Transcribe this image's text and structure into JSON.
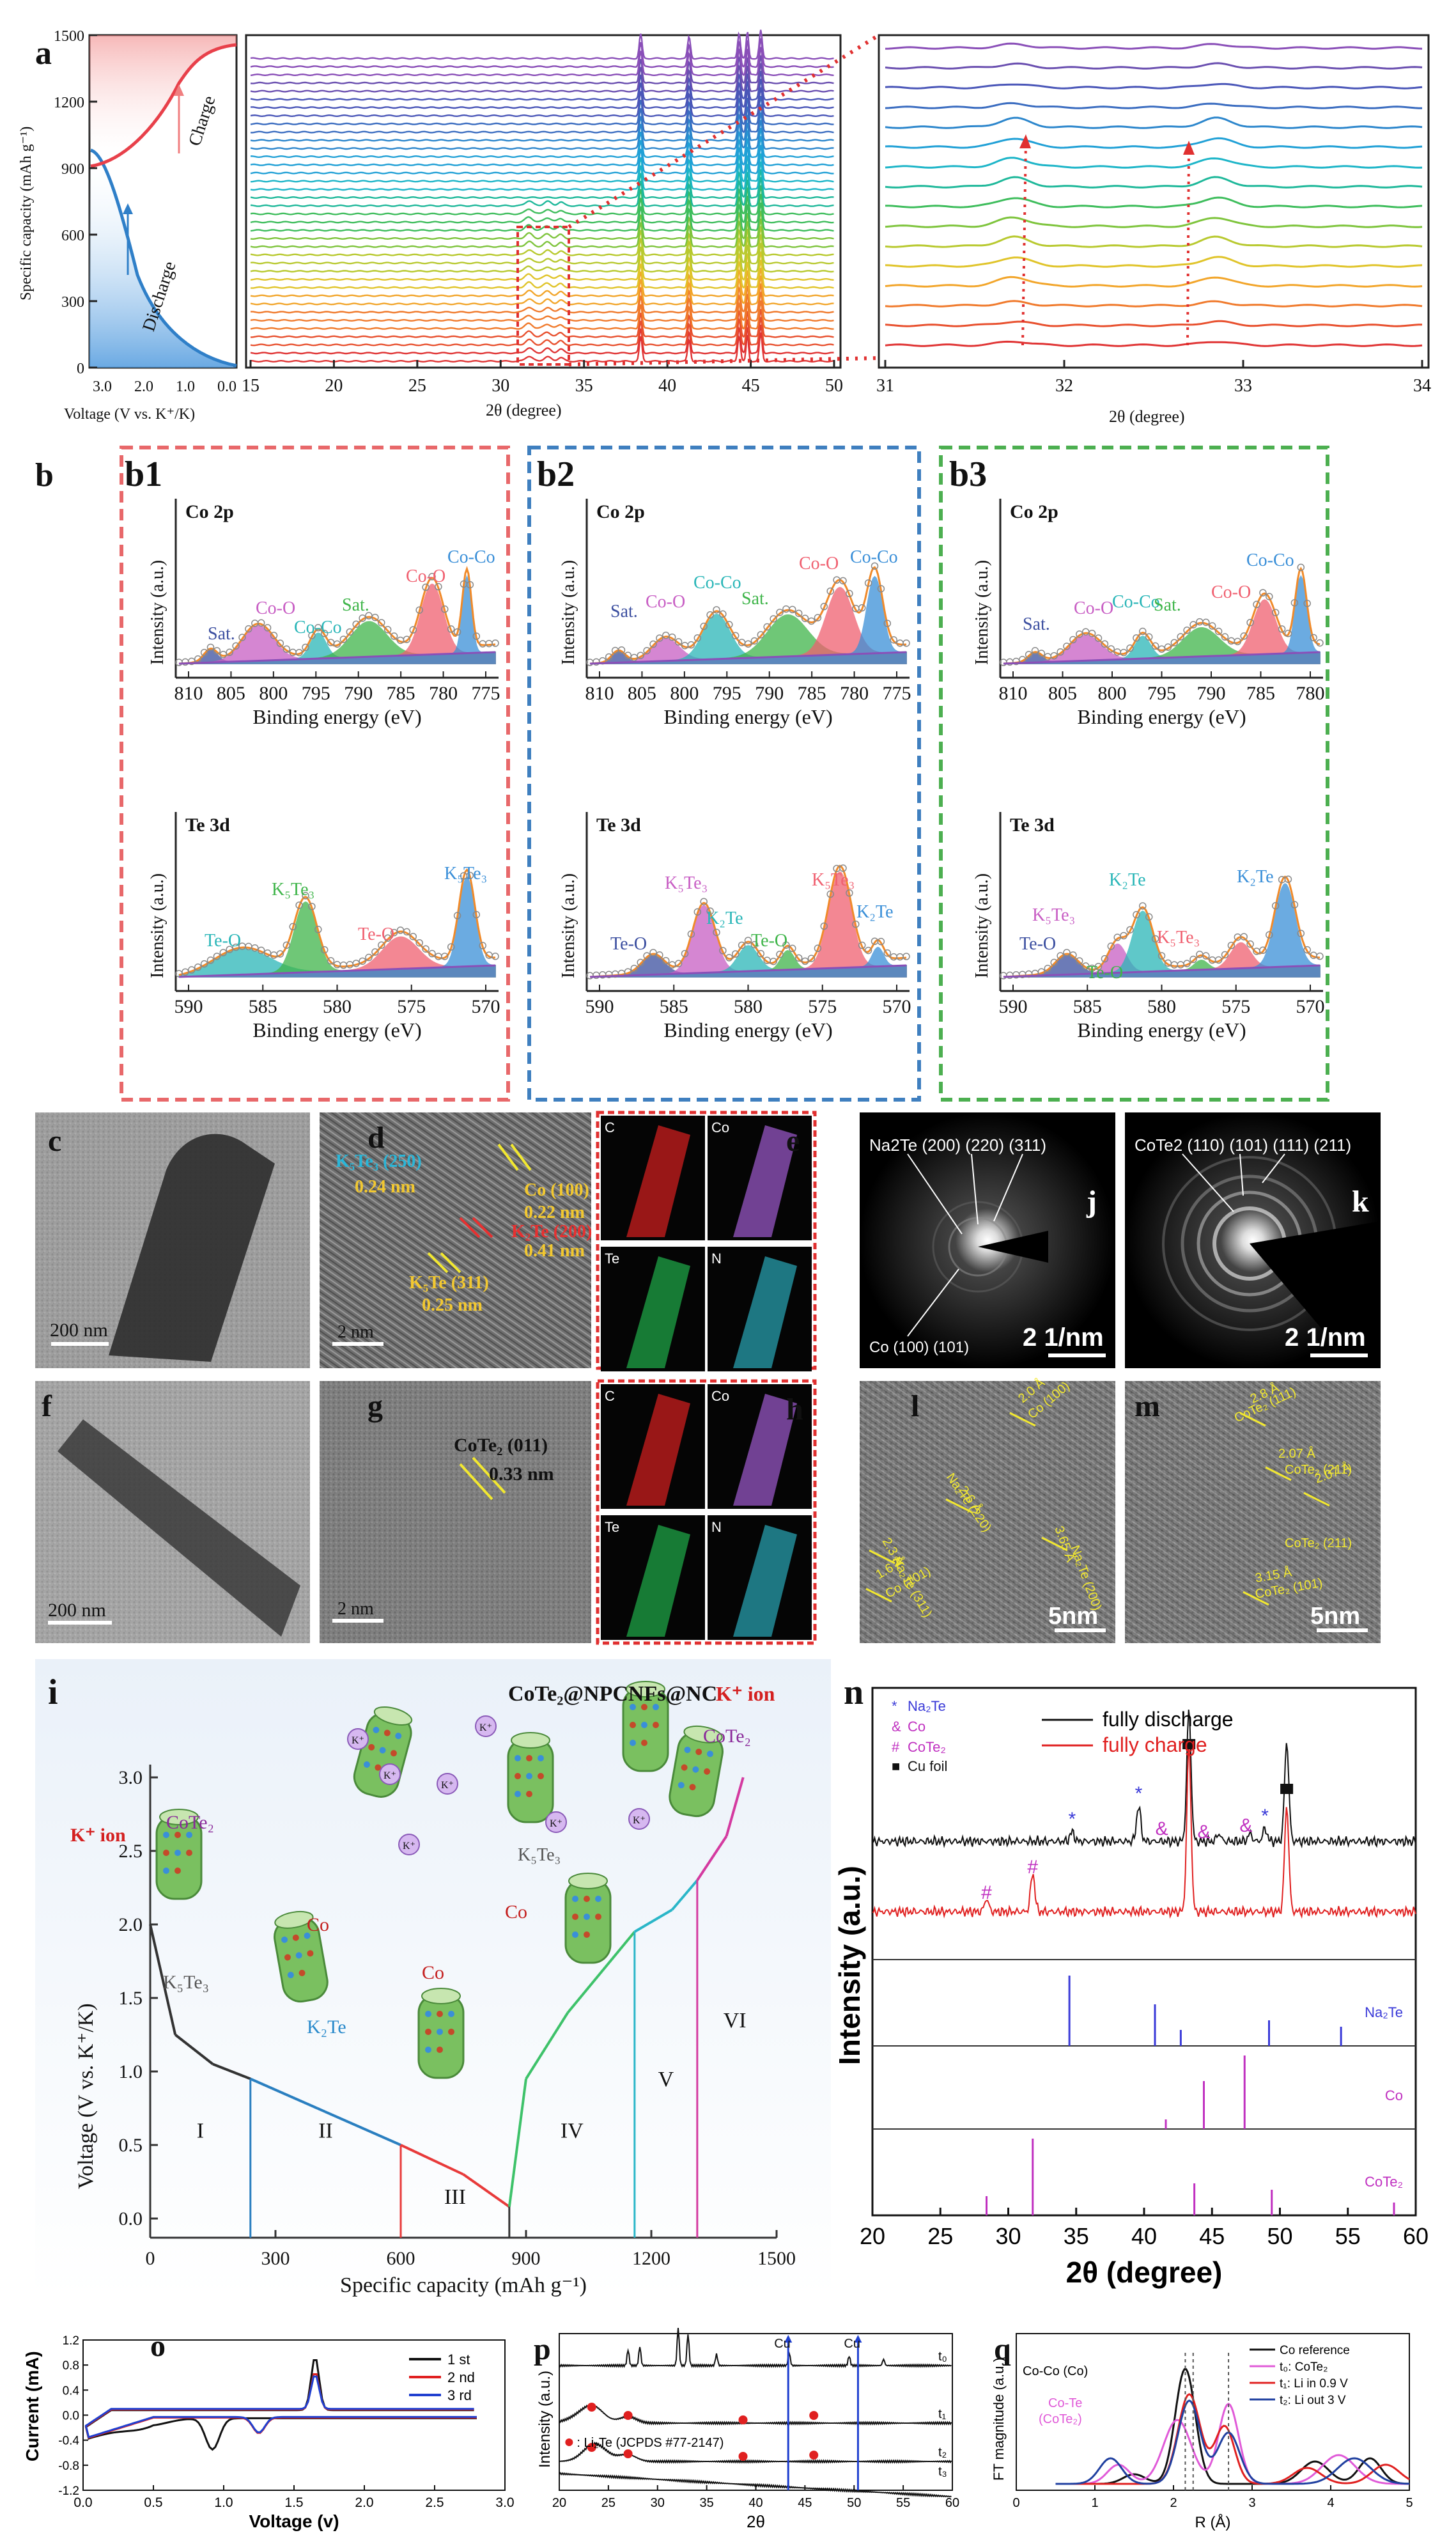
{
  "panel_labels": {
    "a": "a",
    "b": "b",
    "b1": "b1",
    "b2": "b2",
    "b3": "b3",
    "c": "c",
    "d": "d",
    "e": "e",
    "f": "f",
    "g": "g",
    "h": "h",
    "i": "i",
    "j": "j",
    "k": "k",
    "l": "l",
    "m": "m",
    "n": "n",
    "o": "o",
    "p": "p",
    "q": "q"
  },
  "colors": {
    "red_frame": "#e8686a",
    "blue_frame": "#3f7fbf",
    "green_frame": "#4caf50",
    "charge": "#e8404a",
    "discharge": "#2f7fc8"
  },
  "a": {
    "ylabel": "Specific capacity (mAh g⁻¹)",
    "yticks": [
      "0",
      "300",
      "600",
      "900",
      "1200",
      "1500"
    ],
    "xlabel_left": "Voltage (V vs. K⁺/K)",
    "vticks": [
      "3.0",
      "2.0",
      "1.0",
      "0.0"
    ],
    "charge_label": "Charge",
    "discharge_label": "Discharge",
    "xlabel": "2θ (degree)",
    "xticks_mid": [
      "15",
      "20",
      "25",
      "30",
      "35",
      "40",
      "45",
      "50"
    ],
    "xticks_right": [
      "31",
      "32",
      "33",
      "34"
    ]
  },
  "chart_data": [
    {
      "type": "line",
      "title": "Co 2p",
      "panel": "b1",
      "xlabel": "Binding energy (eV)",
      "ylabel": "Intensity (a.u.)",
      "x_range": [
        810,
        775
      ],
      "xticks": [
        "810",
        "805",
        "800",
        "795",
        "790",
        "785",
        "780",
        "775"
      ],
      "peaks": [
        "Sat.",
        "Co-O",
        "Co-Co",
        "Sat.",
        "Co-O",
        "Co-Co"
      ]
    },
    {
      "type": "line",
      "title": "Co 2p",
      "panel": "b2",
      "xlabel": "Binding energy (eV)",
      "ylabel": "Intensity (a.u.)",
      "x_range": [
        810,
        775
      ],
      "xticks": [
        "810",
        "805",
        "800",
        "795",
        "790",
        "785",
        "780",
        "775"
      ],
      "peaks": [
        "Sat.",
        "Co-O",
        "Co-Co",
        "Sat.",
        "Co-O",
        "Co-Co"
      ]
    },
    {
      "type": "line",
      "title": "Co 2p",
      "panel": "b3",
      "xlabel": "Binding energy (eV)",
      "ylabel": "Intensity (a.u.)",
      "x_range": [
        810,
        775
      ],
      "xticks": [
        "810",
        "805",
        "800",
        "795",
        "790",
        "785",
        "780"
      ],
      "peaks": [
        "Sat.",
        "Co-O",
        "Co-Co",
        "Sat.",
        "Co-O",
        "Co-Co"
      ]
    },
    {
      "type": "line",
      "title": "Te 3d",
      "panel": "b1",
      "xlabel": "Binding energy (eV)",
      "ylabel": "Intensity (a.u.)",
      "x_range": [
        590,
        570
      ],
      "xticks": [
        "590",
        "585",
        "580",
        "575",
        "570"
      ],
      "peaks": [
        "Te-O",
        "K₅Te₃",
        "Te-O",
        "K₅Te₃"
      ]
    },
    {
      "type": "line",
      "title": "Te 3d",
      "panel": "b2",
      "xlabel": "Binding energy (eV)",
      "ylabel": "Intensity (a.u.)",
      "x_range": [
        590,
        570
      ],
      "xticks": [
        "590",
        "585",
        "580",
        "575",
        "570"
      ],
      "peaks": [
        "Te-O",
        "K₅Te₃",
        "K₂Te",
        "Te-O",
        "K₅Te₃",
        "K₂Te"
      ]
    },
    {
      "type": "line",
      "title": "Te 3d",
      "panel": "b3",
      "xlabel": "Binding energy (eV)",
      "ylabel": "Intensity (a.u.)",
      "x_range": [
        590,
        570
      ],
      "xticks": [
        "590",
        "585",
        "580",
        "575",
        "570"
      ],
      "peaks": [
        "Te-O",
        "K₅Te₃",
        "K₂Te",
        "Te-O",
        "K₅Te₃",
        "K₂Te"
      ]
    },
    {
      "type": "line",
      "panel": "i",
      "xlabel": "Specific capacity (mAh g⁻¹)",
      "ylabel": "Voltage (V vs. K⁺/K)",
      "xticks": [
        "0",
        "300",
        "600",
        "900",
        "1200",
        "1500"
      ],
      "yticks": [
        "0.0",
        "0.5",
        "1.0",
        "1.5",
        "2.0",
        "2.5",
        "3.0"
      ],
      "series": [
        {
          "name": "discharge",
          "x": [
            0,
            60,
            150,
            240,
            400,
            600,
            750,
            860
          ],
          "y": [
            2.0,
            1.25,
            1.05,
            0.95,
            0.75,
            0.5,
            0.3,
            0.08
          ]
        },
        {
          "name": "charge",
          "x": [
            860,
            900,
            1000,
            1160,
            1250,
            1310,
            1380,
            1420
          ],
          "y": [
            0.08,
            0.95,
            1.4,
            1.95,
            2.1,
            2.3,
            2.6,
            3.0
          ]
        }
      ],
      "regions": [
        "I",
        "II",
        "III",
        "IV",
        "V",
        "VI"
      ],
      "boundaries": [
        240,
        600,
        860,
        1160,
        1310
      ]
    },
    {
      "type": "line",
      "panel": "n",
      "xlabel": "2θ (degree)",
      "ylabel": "Intensity (a.u.)",
      "xticks": [
        "20",
        "25",
        "30",
        "35",
        "40",
        "45",
        "50",
        "55",
        "60"
      ],
      "legend": [
        "fully discharge",
        "fully charge"
      ],
      "markers_legend": [
        "Na₂Te",
        "Co",
        "CoTe₂",
        "Cu foil"
      ],
      "ref_labels": [
        "Na₂Te",
        "Co",
        "CoTe₂"
      ],
      "ref_na2te": [
        34.5,
        40.8,
        42.7,
        49.2,
        54.5
      ],
      "ref_co": [
        41.6,
        44.4,
        47.4
      ],
      "ref_cote2": [
        28.4,
        31.8,
        43.7,
        49.4,
        58.4
      ]
    },
    {
      "type": "line",
      "panel": "o",
      "xlabel": "Voltage (v)",
      "ylabel": "Current (mA)",
      "xticks": [
        "0.0",
        "0.5",
        "1.0",
        "1.5",
        "2.0",
        "2.5",
        "3.0"
      ],
      "yticks": [
        "-1.2",
        "-1.0",
        "-0.8",
        "-0.6",
        "-0.4",
        "-0.2",
        "0.0",
        "0.2",
        "0.4",
        "0.6",
        "0.8",
        "1.0",
        "1.2"
      ],
      "legend": [
        "1 st",
        "2 nd",
        "3 rd"
      ]
    },
    {
      "type": "line",
      "panel": "p",
      "xlabel": "2θ",
      "ylabel": "Intensity (a.u.)",
      "xticks": [
        "20",
        "25",
        "30",
        "35",
        "40",
        "45",
        "50",
        "55",
        "60"
      ],
      "traces": [
        "t₀",
        "t₁",
        "t₂",
        "t₃"
      ],
      "markers": [
        "Cu",
        "Cu"
      ],
      "legend": "Li₂Te (JCPDS #77-2147)"
    },
    {
      "type": "line",
      "panel": "q",
      "xlabel": "R (Å)",
      "ylabel": "FT magnitude (a.u.)",
      "xticks": [
        "0",
        "1",
        "2",
        "3",
        "4",
        "5"
      ],
      "legend": [
        "Co reference",
        "t₀: CoTe₂",
        "t₁: Li in 0.9 V",
        "t₂: Li out 3 V"
      ],
      "annotations": [
        "Co-Co (Co)",
        "Co-Te",
        "(CoTe₂)"
      ]
    }
  ],
  "tem": {
    "c_scale": "200 nm",
    "f_scale": "200 nm",
    "d_scale": "2 nm",
    "g_scale": "2 nm",
    "d_labels": [
      "K₅Te₃ (250)",
      "0.24 nm",
      "Co (100)",
      "0.22 nm",
      "K₂Te (200)",
      "0.41 nm",
      "K₅Te (311)",
      "0.25 nm"
    ],
    "g_labels": [
      "CoTe₂ (011)",
      "0.33 nm"
    ],
    "map_labels": [
      "C",
      "Co",
      "Te",
      "N"
    ]
  },
  "saed": {
    "j_top": "Na2Te (200) (220) (311)",
    "j_bottom": "Co (100) (101)",
    "j_scale": "2 1/nm",
    "k_top": "CoTe2 (110) (101) (111) (211)",
    "k_scale": "2 1/nm",
    "l_labels": [
      "2.0 Å",
      "Co (100)",
      "2.6 Å",
      "Na₂Te (220)",
      "2.3 Å",
      "Na₂Te (311)",
      "3.65 Å",
      "Na₂Te (200)",
      "1.6 Å",
      "Co (101)"
    ],
    "m_labels": [
      "2.8 Å",
      "CoTe₂ (111)",
      "2.07 Å",
      "CoTe₂ (211)",
      "2.07 Å",
      "CoTe₂ (211)",
      "3.15 Å",
      "CoTe₂ (101)"
    ],
    "scale": "5nm"
  },
  "i_labels": {
    "title": "CoTe₂@NPCNFs@NC",
    "k_ion": "K⁺ ion",
    "cote2": "CoTe₂",
    "k5te3": "K₅Te₃",
    "co": "Co",
    "k2te": "K₂Te",
    "kplus": "K⁺"
  }
}
